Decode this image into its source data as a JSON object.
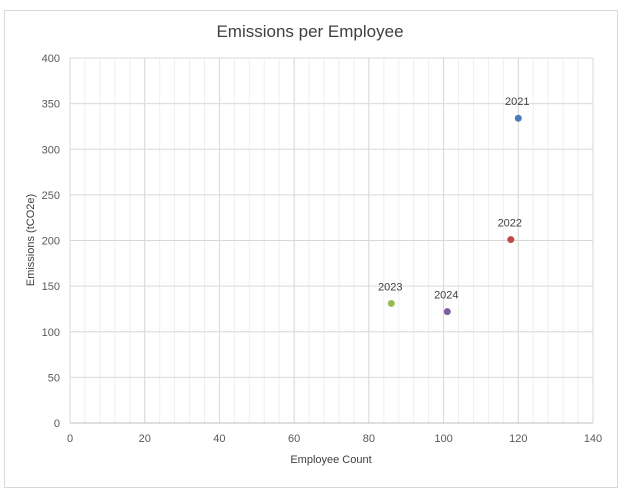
{
  "chart_data": {
    "type": "scatter",
    "title": "Emissions per Employee",
    "xlabel": "Employee Count",
    "ylabel": "Emissions (tCO2e)",
    "xlim": [
      0,
      140
    ],
    "ylim": [
      0,
      400
    ],
    "x_ticks": [
      0,
      20,
      40,
      60,
      80,
      100,
      120,
      140
    ],
    "y_ticks": [
      0,
      50,
      100,
      150,
      200,
      250,
      300,
      350,
      400
    ],
    "grid": true,
    "legend": "none",
    "points": [
      {
        "label": "2021",
        "x": 120,
        "y": 334,
        "color": "#4a7ebb"
      },
      {
        "label": "2022",
        "x": 118,
        "y": 201,
        "color": "#be4b48"
      },
      {
        "label": "2023",
        "x": 86,
        "y": 131,
        "color": "#98b954"
      },
      {
        "label": "2024",
        "x": 101,
        "y": 122,
        "color": "#7d5fa0"
      }
    ]
  }
}
